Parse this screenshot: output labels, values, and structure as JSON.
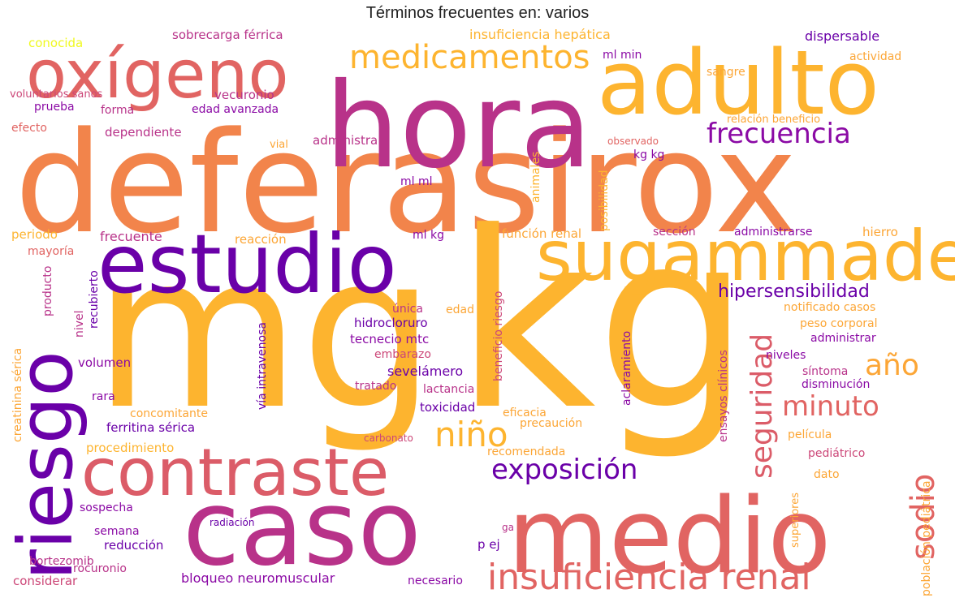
{
  "title": "Términos frecuentes en: varios",
  "colors": {
    "purple": "#6a00a8",
    "violet": "#8b0aa5",
    "magenta": "#b83289",
    "pink": "#cc4778",
    "salmon": "#db5c68",
    "coral": "#e16462",
    "orange": "#f2844b",
    "amber": "#fca636",
    "gold": "#fdb42f",
    "yellow": "#f0f921"
  },
  "words": [
    "deferasirox",
    "mg",
    "kg",
    "hora",
    "adulto",
    "oxígeno",
    "estudio",
    "sugammadex",
    "riesgo",
    "caso",
    "medio",
    "contraste",
    "insuficiencia renal",
    "medicamentos",
    "frecuencia",
    "seguridad",
    "minuto",
    "año",
    "exposición",
    "niño",
    "hipersensibilidad",
    "sodio",
    "conocida",
    "sobrecarga férrica",
    "insuficiencia hepática",
    "dispersable",
    "actividad",
    "ml min",
    "sangre",
    "voluntarios sanos",
    "vecuronio",
    "prueba",
    "forma",
    "edad avanzada",
    "efecto",
    "dependiente",
    "relación beneficio",
    "observado",
    "vial",
    "administra",
    "kg kg",
    "ml ml",
    "animales",
    "posibilidad",
    "periodo",
    "frecuente",
    "reacción",
    "ml kg",
    "función renal",
    "sección",
    "administrarse",
    "hierro",
    "mayoría",
    "recubierto",
    "producto",
    "creatinina sérica",
    "vía intravenosa",
    "beneficio riesgo",
    "única",
    "edad",
    "hidrocloruro",
    "tecnecio mtc",
    "aclaramiento",
    "ensayos clínicos",
    "notificado casos",
    "peso corporal",
    "administrar",
    "nivel",
    "volumen",
    "embarazo",
    "niveles",
    "síntoma",
    "disminución",
    "sevelámero",
    "tratado",
    "lactancia",
    "rara",
    "concomitante",
    "eficacia",
    "toxicidad",
    "ferritina sérica",
    "precaución",
    "película",
    "carbonato",
    "procedimiento",
    "recomendada",
    "pediátrico",
    "dato",
    "superiores",
    "población pediátrica",
    "sospecha",
    "radiación",
    "ga",
    "semana",
    "reducción",
    "p ej",
    "bortezomib",
    "rocuronio",
    "considerar",
    "bloqueo neuromuscular",
    "necesario"
  ]
}
